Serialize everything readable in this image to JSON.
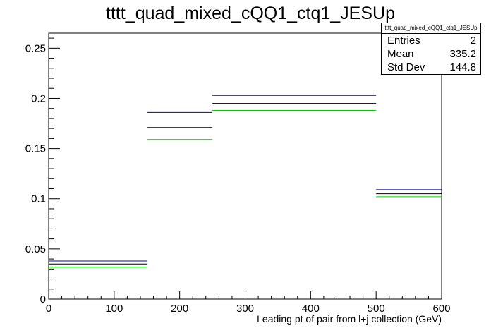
{
  "chart_data": {
    "type": "histogram",
    "title": "tttt_quad_mixed_cQQ1_ctq1_JESUp",
    "xlabel": "Leading pt of pair from l+j collection (GeV)",
    "ylabel": "",
    "xlim": [
      0,
      600
    ],
    "ylim": [
      0,
      0.265
    ],
    "x_ticks": [
      0,
      100,
      200,
      300,
      400,
      500,
      600
    ],
    "y_ticks": [
      0,
      0.05,
      0.1,
      0.15,
      0.2,
      0.25
    ],
    "x_tick_labels": [
      "0",
      "100",
      "200",
      "300",
      "400",
      "500",
      "600"
    ],
    "y_tick_labels": [
      "0",
      "0.05",
      "0.1",
      "0.15",
      "0.2",
      "0.25"
    ],
    "bin_edges": [
      0,
      150,
      250,
      500,
      600
    ],
    "series": [
      {
        "color": "#0000aa",
        "values": [
          0.038,
          0.186,
          0.203,
          0.109
        ]
      },
      {
        "color": "#000000",
        "values": [
          0.035,
          0.171,
          0.195,
          0.105
        ]
      },
      {
        "color": "#00cc00",
        "values": [
          0.032,
          0.159,
          0.188,
          0.102
        ]
      }
    ],
    "grid": false,
    "legend": "none"
  },
  "stats": {
    "title": "tttt_quad_mixed_cQQ1_ctq1_JESUp",
    "rows": [
      {
        "label": "Entries",
        "value": "2"
      },
      {
        "label": "Mean",
        "value": "335.2"
      },
      {
        "label": "Std Dev",
        "value": "144.8"
      }
    ]
  }
}
